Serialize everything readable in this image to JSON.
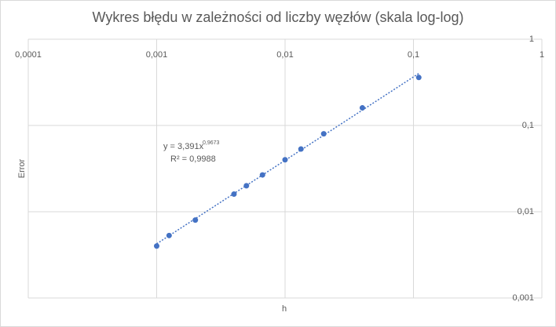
{
  "chart_data": {
    "type": "scatter",
    "title": "Wykres błędu w zależności od liczby węzłów (skala log-log)",
    "x_label": "h",
    "y_label": "Error",
    "x": [
      0.001,
      0.00125,
      0.002,
      0.004,
      0.005,
      0.00667,
      0.01,
      0.0133,
      0.02,
      0.04,
      0.11
    ],
    "values": [
      0.004,
      0.0053,
      0.008,
      0.016,
      0.02,
      0.0267,
      0.04,
      0.0533,
      0.08,
      0.16,
      0.36
    ],
    "color": "#4472c4",
    "xscale": "log",
    "yscale": "log",
    "xlim": [
      0.0001,
      1
    ],
    "ylim": [
      0.001,
      1
    ],
    "xticks": [
      {
        "value": 0.0001,
        "label": "0,0001"
      },
      {
        "value": 0.001,
        "label": "0,001"
      },
      {
        "value": 0.01,
        "label": "0,01"
      },
      {
        "value": 0.1,
        "label": "0,1"
      },
      1
    ],
    "yticks": [
      {
        "value": 0.001,
        "label": "0,001"
      },
      {
        "value": 0.01,
        "label": "0,01"
      },
      {
        "value": 0.1,
        "label": "0,1"
      },
      1
    ],
    "grid": true,
    "trendline": {
      "coefficient": 3.391,
      "power": 0.9673,
      "equation": "y = 3,391x",
      "exponent": "0,9673",
      "r_squared": "R² = 0,9988"
    }
  }
}
